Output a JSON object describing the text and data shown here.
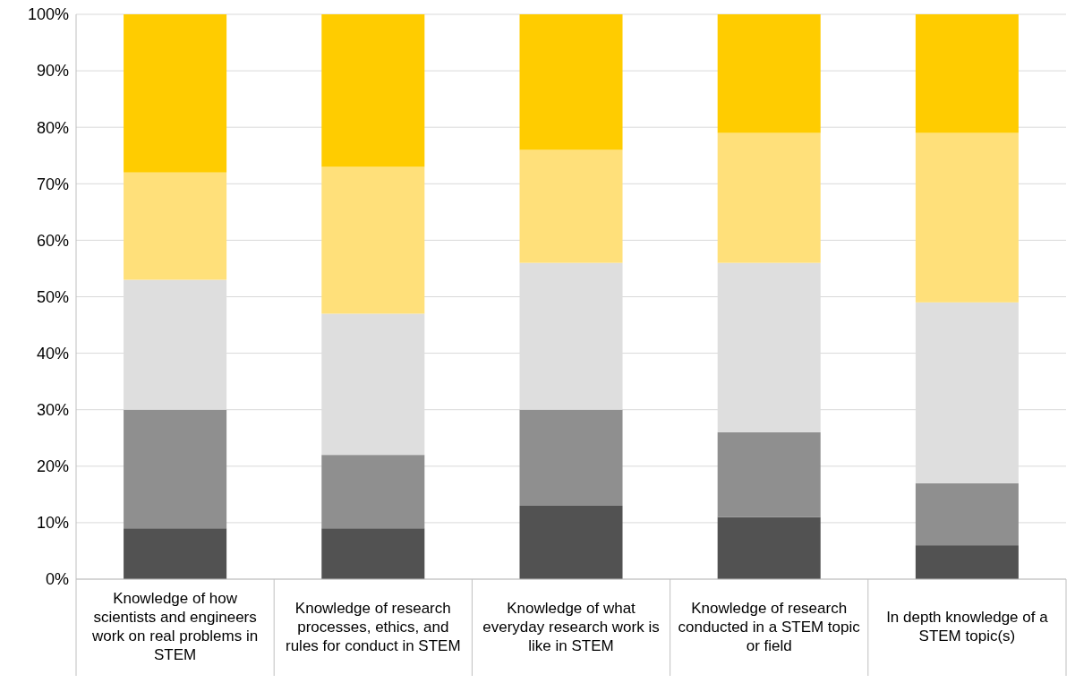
{
  "chart_data": {
    "type": "bar",
    "stacked": true,
    "categories": [
      "Knowledge of how scientists and engineers work on real problems in STEM",
      "Knowledge of research processes, ethics, and rules for conduct in STEM",
      "Knowledge of what everyday research work is like in STEM",
      "Knowledge of research conducted in a STEM topic or field",
      "In depth knowledge of a STEM topic(s)"
    ],
    "series": [
      {
        "color": "#525252",
        "values": [
          9,
          9,
          13,
          11,
          6
        ]
      },
      {
        "color": "#8f8f8f",
        "values": [
          21,
          13,
          17,
          15,
          11
        ]
      },
      {
        "color": "#dedede",
        "values": [
          23,
          25,
          26,
          30,
          32
        ]
      },
      {
        "color": "#ffe07a",
        "values": [
          19,
          26,
          20,
          23,
          30
        ]
      },
      {
        "color": "#ffcc00",
        "values": [
          28,
          27,
          24,
          21,
          21
        ]
      }
    ],
    "ylim": [
      0,
      100
    ],
    "yticks": [
      {
        "value": 0,
        "label": "0%"
      },
      {
        "value": 10,
        "label": "10%"
      },
      {
        "value": 20,
        "label": "20%"
      },
      {
        "value": 30,
        "label": "30%"
      },
      {
        "value": 40,
        "label": "40%"
      },
      {
        "value": 50,
        "label": "50%"
      },
      {
        "value": 60,
        "label": "60%"
      },
      {
        "value": 70,
        "label": "70%"
      },
      {
        "value": 80,
        "label": "80%"
      },
      {
        "value": 90,
        "label": "90%"
      },
      {
        "value": 100,
        "label": "100%"
      }
    ],
    "grid": "y"
  }
}
